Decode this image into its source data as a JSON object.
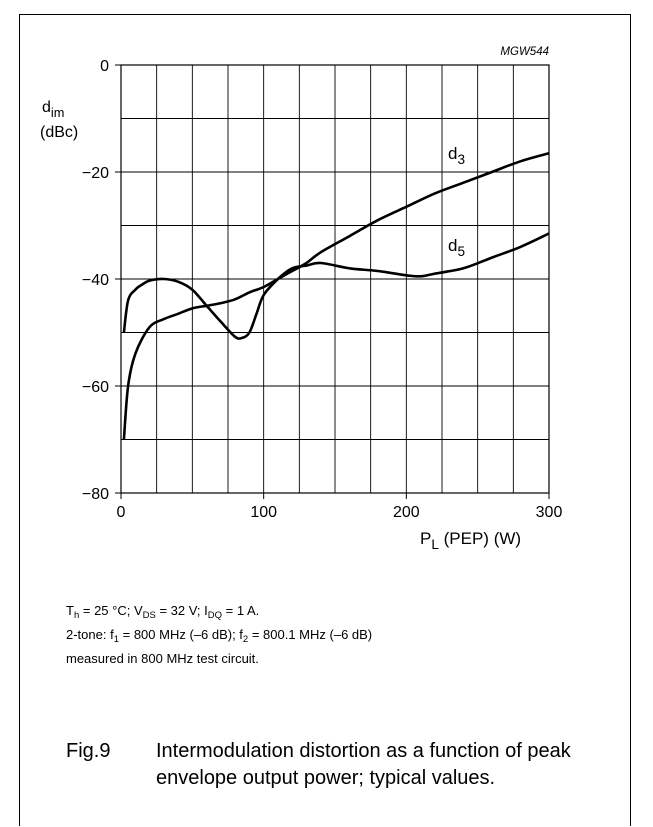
{
  "chart_data": {
    "type": "line",
    "code": "MGW544",
    "ylabel": {
      "main": "d",
      "sub": "im",
      "unit": "(dBc)"
    },
    "xlabel": {
      "main": "P",
      "sub": "L",
      "rest": " (PEP) (W)"
    },
    "xlim": [
      0,
      300
    ],
    "ylim": [
      -80,
      0
    ],
    "x_ticks": [
      0,
      100,
      200,
      300
    ],
    "y_ticks": [
      0,
      -20,
      -40,
      -60,
      -80
    ],
    "x_tick_labels": [
      "0",
      "100",
      "200",
      "300"
    ],
    "y_tick_labels": [
      "0",
      "−20",
      "−40",
      "−60",
      "−80"
    ],
    "grid": true,
    "series": [
      {
        "name": "d3",
        "label_main": "d",
        "label_sub": "3",
        "x": [
          2,
          5,
          10,
          20,
          30,
          40,
          50,
          60,
          70,
          80,
          90,
          100,
          110,
          120,
          130,
          140,
          160,
          180,
          200,
          220,
          240,
          260,
          280,
          300
        ],
        "y": [
          -70,
          -60,
          -54,
          -49,
          -47.5,
          -46.5,
          -45.5,
          -45,
          -44.5,
          -43.8,
          -42.5,
          -41.5,
          -40,
          -38.5,
          -37,
          -35,
          -32,
          -29,
          -26.5,
          -24,
          -22,
          -20,
          -18,
          -16.5
        ]
      },
      {
        "name": "d5",
        "label_main": "d",
        "label_sub": "5",
        "x": [
          2,
          5,
          10,
          15,
          20,
          30,
          40,
          50,
          60,
          70,
          80,
          85,
          90,
          95,
          100,
          110,
          120,
          130,
          140,
          160,
          180,
          200,
          210,
          220,
          240,
          260,
          280,
          300
        ],
        "y": [
          -50,
          -44,
          -42,
          -41,
          -40.3,
          -40,
          -40.5,
          -42,
          -45,
          -48,
          -50.8,
          -51,
          -50,
          -46.5,
          -43,
          -40,
          -38,
          -37.5,
          -37,
          -38,
          -38.5,
          -39.3,
          -39.5,
          -39,
          -38,
          -36,
          -34,
          -31.5
        ]
      }
    ]
  },
  "conditions": {
    "line1": {
      "a": "T",
      "a_sub": "h",
      "b": " = 25 °C; V",
      "b_sub": "DS",
      "c": " = 32 V; I",
      "c_sub": "DQ",
      "d": " = 1 A."
    },
    "line2": {
      "a": "2-tone: f",
      "a_sub": "1",
      "b": " = 800 MHz (–6 dB); f",
      "b_sub": "2",
      "c": " = 800.1 MHz (–6 dB)"
    },
    "line3": "measured in 800 MHz test circuit."
  },
  "caption": {
    "fig": "Fig.9",
    "text": "Intermodulation distortion as a function of peak envelope output power; typical values."
  }
}
